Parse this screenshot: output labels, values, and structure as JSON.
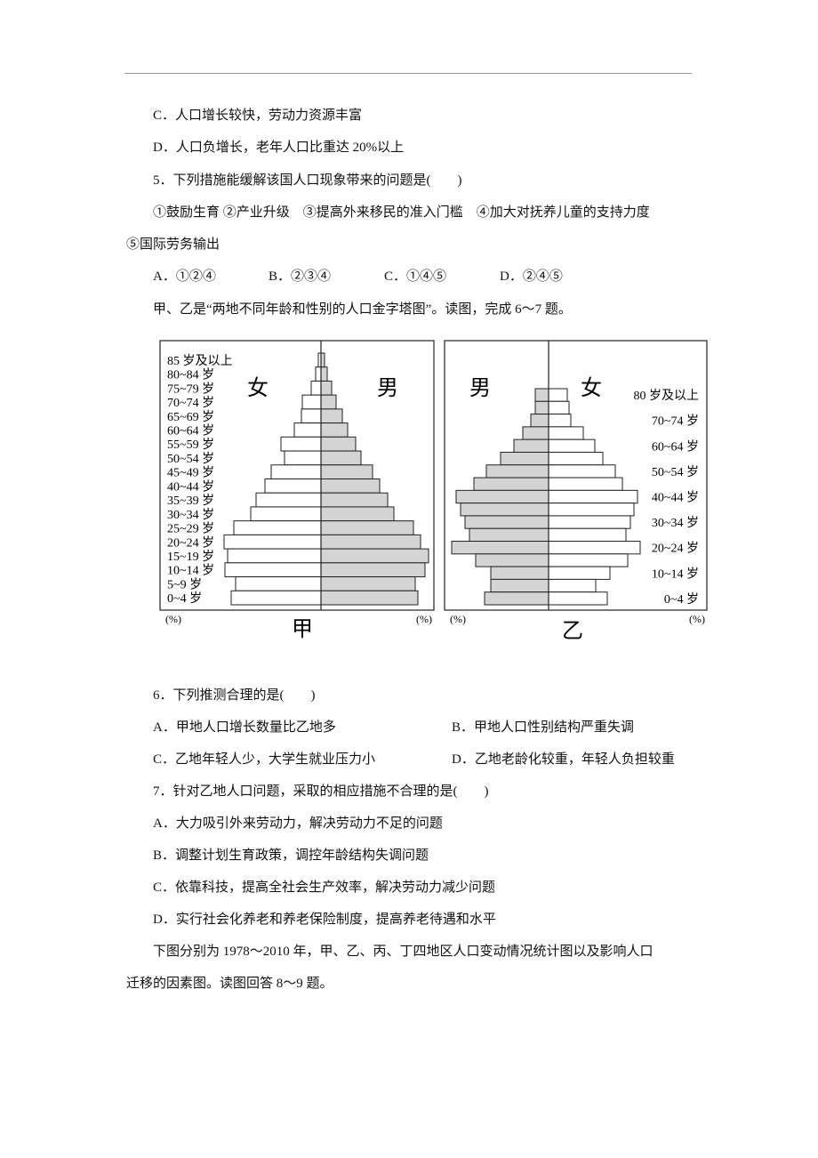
{
  "questions_top": {
    "c4": "C．人口增长较快，劳动力资源丰富",
    "d4": "D．人口负增长，老年人口比重达 20%以上"
  },
  "q5": {
    "stem": "5．下列措施能缓解该国人口现象带来的问题是(　　)",
    "items_line1": "①鼓励生育 ②产业升级　③提高外来移民的准入门槛　④加大对抚养儿童的支持力度",
    "items_line2": "⑤国际劳务输出",
    "options": [
      "A．①②④",
      "B．②③④",
      "C．①④⑤",
      "D．②④⑤"
    ]
  },
  "intro_6_7": "甲、乙是“两地不同年龄和性别的人口金字塔图”。读图，完成 6～7 题。",
  "figure": {
    "pyramids": [
      {
        "caption": "甲",
        "left_label": "女",
        "right_label": "男",
        "left_unit": "(%)",
        "right_unit": "(%)",
        "ages": [
          "85 岁及以上",
          "80~84 岁",
          "75~79 岁",
          "70~74 岁",
          "65~69 岁",
          "60~64 岁",
          "55~59 岁",
          "50~54 岁",
          "45~49 岁",
          "40~44 岁",
          "35~39 岁",
          "30~34 岁",
          "25~29 岁",
          "20~24 岁",
          "15~19 岁",
          "10~14 岁",
          "5~9 岁",
          "0~4 岁"
        ],
        "left_values": [
          0.15,
          0.3,
          0.55,
          1.05,
          1.1,
          1.5,
          2.25,
          2.05,
          2.8,
          3.15,
          3.65,
          3.95,
          4.9,
          5.45,
          5.25,
          5.4,
          4.8,
          5.05
        ],
        "right_values": [
          0.2,
          0.35,
          0.6,
          0.85,
          1.2,
          1.5,
          1.95,
          2.25,
          2.9,
          3.3,
          3.75,
          4.1,
          5.2,
          5.6,
          6.05,
          5.85,
          5.3,
          5.45
        ]
      },
      {
        "caption": "乙",
        "left_label": "男",
        "right_label": "女",
        "left_unit": "(%)",
        "right_unit": "(%)",
        "ages": [
          "80 岁及以上",
          null,
          "70~74 岁",
          null,
          "60~64 岁",
          null,
          "50~54 岁",
          null,
          "40~44 岁",
          null,
          "30~34 岁",
          null,
          "20~24 岁",
          null,
          "10~14 岁",
          null,
          "0~4 岁"
        ],
        "left_values": [
          0.75,
          0.75,
          1.0,
          1.45,
          1.95,
          2.7,
          3.5,
          4.2,
          5.2,
          4.95,
          4.7,
          4.45,
          5.45,
          4.1,
          3.25,
          3.25,
          3.6
        ],
        "right_values": [
          1.05,
          1.15,
          1.25,
          1.95,
          2.6,
          3.05,
          3.75,
          4.15,
          5.0,
          4.8,
          4.6,
          4.35,
          5.15,
          4.45,
          3.45,
          2.65,
          3.3
        ]
      }
    ]
  },
  "q6": {
    "stem": "6．下列推测合理的是(　　)",
    "options": [
      "A．甲地人口增长数量比乙地多",
      "B．甲地人口性别结构严重失调",
      "C．乙地年轻人少，大学生就业压力小",
      "D．乙地老龄化较重，年轻人负担较重"
    ]
  },
  "q7": {
    "stem": "7．针对乙地人口问题，采取的相应措施不合理的是(　　)",
    "options": [
      "A．大力吸引外来劳动力，解决劳动力不足的问题",
      "B．调整计划生育政策，调控年龄结构失调问题",
      "C．依靠科技，提高全社会生产效率，解决劳动力减少问题",
      "D．实行社会化养老和养老保险制度，提高养老待遇和水平"
    ]
  },
  "intro_8_9": {
    "line1": "下图分别为 1978～2010 年，甲、乙、丙、丁四地区人口变动情况统计图以及影响人口",
    "line2": "迁移的因素图。读图回答 8～9 题。"
  }
}
